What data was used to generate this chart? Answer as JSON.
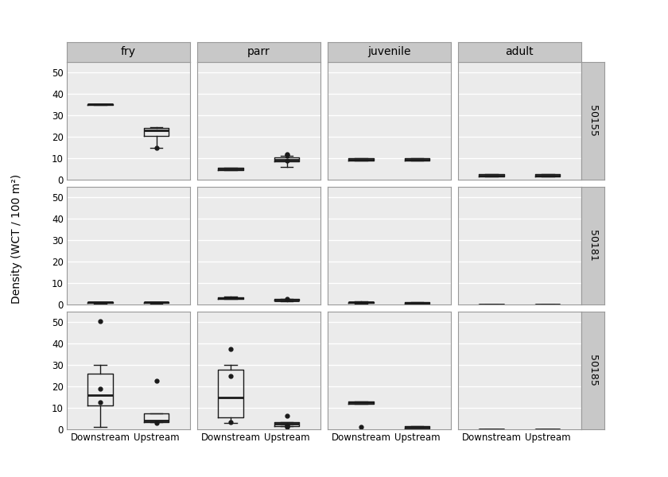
{
  "col_labels": [
    "fry",
    "parr",
    "juvenile",
    "adult"
  ],
  "row_labels": [
    "50155",
    "50181",
    "50185"
  ],
  "x_labels": [
    "Downstream",
    "Upstream"
  ],
  "ylabel": "Density (WCT / 100 m²)",
  "ylim": [
    0,
    55
  ],
  "yticks": [
    0,
    10,
    20,
    30,
    40,
    50
  ],
  "background_color": "#ffffff",
  "panel_bg": "#ebebeb",
  "strip_bg": "#c8c8c8",
  "grid_color": "#ffffff",
  "box_color": "#1a1a1a",
  "boxplots": {
    "50155": {
      "fry": {
        "Downstream": {
          "q1": 35.0,
          "median": 35.2,
          "q3": 35.5,
          "whislo": 35.0,
          "whishi": 35.5,
          "fliers": []
        },
        "Upstream": {
          "q1": 20.5,
          "median": 23.0,
          "q3": 24.0,
          "whislo": 15.0,
          "whishi": 24.5,
          "fliers": [
            15.0
          ]
        }
      },
      "parr": {
        "Downstream": {
          "q1": 4.5,
          "median": 5.0,
          "q3": 5.5,
          "whislo": 4.5,
          "whishi": 5.5,
          "fliers": []
        },
        "Upstream": {
          "q1": 8.5,
          "median": 9.5,
          "q3": 10.5,
          "whislo": 6.0,
          "whishi": 11.0,
          "fliers": [
            11.5,
            12.0,
            9.0
          ]
        }
      },
      "juvenile": {
        "Downstream": {
          "q1": 9.0,
          "median": 9.5,
          "q3": 10.0,
          "whislo": 9.0,
          "whishi": 10.0,
          "fliers": []
        },
        "Upstream": {
          "q1": 9.0,
          "median": 9.5,
          "q3": 10.0,
          "whislo": 9.0,
          "whishi": 10.0,
          "fliers": []
        }
      },
      "adult": {
        "Downstream": {
          "q1": 1.5,
          "median": 2.0,
          "q3": 2.5,
          "whislo": 1.5,
          "whishi": 2.5,
          "fliers": []
        },
        "Upstream": {
          "q1": 1.5,
          "median": 2.0,
          "q3": 2.5,
          "whislo": 1.5,
          "whishi": 2.5,
          "fliers": []
        }
      }
    },
    "50181": {
      "fry": {
        "Downstream": {
          "q1": 0.8,
          "median": 1.0,
          "q3": 1.0,
          "whislo": 0.5,
          "whishi": 1.2,
          "fliers": []
        },
        "Upstream": {
          "q1": 0.8,
          "median": 1.0,
          "q3": 1.0,
          "whislo": 0.5,
          "whishi": 1.2,
          "fliers": []
        }
      },
      "parr": {
        "Downstream": {
          "q1": 2.8,
          "median": 3.0,
          "q3": 3.5,
          "whislo": 2.5,
          "whishi": 3.8,
          "fliers": []
        },
        "Upstream": {
          "q1": 1.8,
          "median": 2.0,
          "q3": 2.5,
          "whislo": 1.5,
          "whishi": 2.8,
          "fliers": [
            2.8
          ]
        }
      },
      "juvenile": {
        "Downstream": {
          "q1": 0.8,
          "median": 1.0,
          "q3": 1.0,
          "whislo": 0.5,
          "whishi": 1.5,
          "fliers": []
        },
        "Upstream": {
          "q1": 0.5,
          "median": 0.8,
          "q3": 1.0,
          "whislo": 0.5,
          "whishi": 1.0,
          "fliers": []
        }
      },
      "adult": {
        "Downstream": {
          "q1": 0.0,
          "median": 0.0,
          "q3": 0.0,
          "whislo": 0.0,
          "whishi": 0.0,
          "fliers": []
        },
        "Upstream": {
          "q1": 0.0,
          "median": 0.0,
          "q3": 0.0,
          "whislo": 0.0,
          "whishi": 0.0,
          "fliers": []
        }
      }
    },
    "50185": {
      "fry": {
        "Downstream": {
          "q1": 11.0,
          "median": 16.0,
          "q3": 26.0,
          "whislo": 1.0,
          "whishi": 30.0,
          "fliers": [
            50.5,
            19.0,
            12.5
          ]
        },
        "Upstream": {
          "q1": 3.5,
          "median": 4.0,
          "q3": 7.5,
          "whislo": 3.5,
          "whishi": 7.5,
          "fliers": [
            22.5,
            3.0
          ]
        }
      },
      "parr": {
        "Downstream": {
          "q1": 5.5,
          "median": 15.0,
          "q3": 28.0,
          "whislo": 3.0,
          "whishi": 30.0,
          "fliers": [
            37.5,
            25.0,
            3.5
          ]
        },
        "Upstream": {
          "q1": 1.5,
          "median": 2.5,
          "q3": 3.5,
          "whislo": 1.5,
          "whishi": 3.5,
          "fliers": [
            6.5,
            1.5,
            2.0,
            1.0
          ]
        }
      },
      "juvenile": {
        "Downstream": {
          "q1": 12.0,
          "median": 12.5,
          "q3": 13.0,
          "whislo": 12.0,
          "whishi": 13.0,
          "fliers": [
            1.0
          ]
        },
        "Upstream": {
          "q1": 0.5,
          "median": 1.0,
          "q3": 1.5,
          "whislo": 0.5,
          "whishi": 1.5,
          "fliers": []
        }
      },
      "adult": {
        "Downstream": {
          "q1": 0.0,
          "median": 0.0,
          "q3": 0.0,
          "whislo": 0.0,
          "whishi": 0.0,
          "fliers": []
        },
        "Upstream": {
          "q1": 0.0,
          "median": 0.0,
          "q3": 0.0,
          "whislo": 0.0,
          "whishi": 0.0,
          "fliers": []
        }
      }
    }
  }
}
